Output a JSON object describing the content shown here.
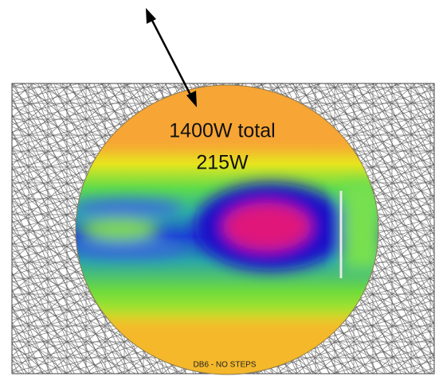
{
  "labels": {
    "total": "1400W total",
    "value": "215W",
    "caption": "DB6 - NO STEPS"
  }
}
